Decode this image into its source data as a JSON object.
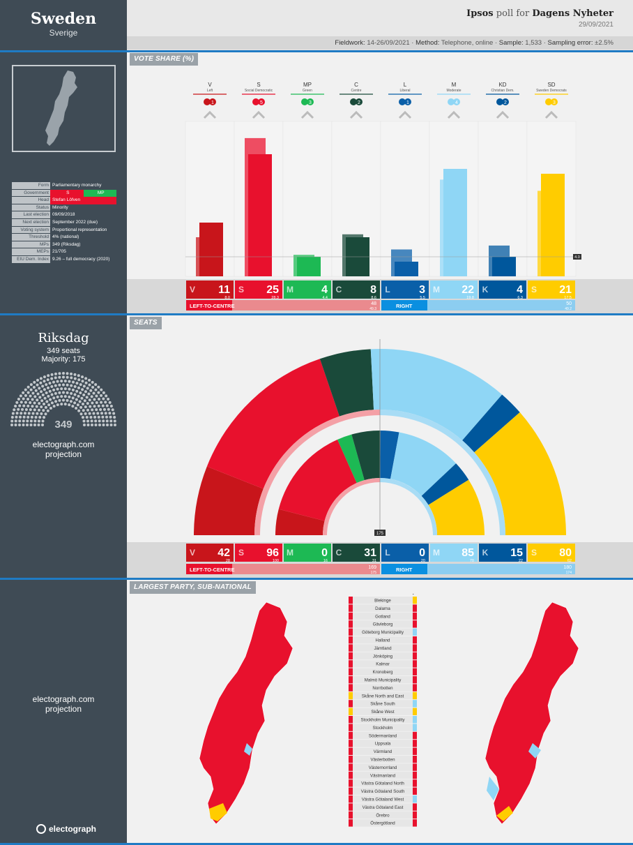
{
  "country": {
    "name": "Sweden",
    "native": "Sverige"
  },
  "poll": {
    "pollster": "Ipsos",
    "poll_for": "poll for",
    "client": "Dagens Nyheter",
    "date": "29/09/2021",
    "meta": [
      {
        "k": "Fieldwork:",
        "v": "14-26/09/2021"
      },
      {
        "k": "Method:",
        "v": "Telephone, online"
      },
      {
        "k": "Sample:",
        "v": "1,533"
      },
      {
        "k": "Sampling error:",
        "v": "±2.5%"
      }
    ]
  },
  "facts": [
    {
      "k": "Form",
      "v": "Parliamentary monarchy"
    },
    {
      "k": "Government",
      "v1": "S",
      "v2": "MP"
    },
    {
      "k": "Head",
      "v": "Stefan Löfven"
    },
    {
      "k": "Status",
      "v": "Minority"
    },
    {
      "k": "Last election",
      "v": "09/09/2018"
    },
    {
      "k": "Next election",
      "v": "September 2022 (due)"
    },
    {
      "k": "Voting system",
      "v": "Proportional representation"
    },
    {
      "k": "Threshold",
      "v": "4% (national)"
    },
    {
      "k": "MPs",
      "v": "349 (Riksdag)"
    },
    {
      "k": "MEPs",
      "v": "21/705"
    },
    {
      "k": "EIU Dem. Index",
      "v": "9.26 – full democracy (2020)"
    }
  ],
  "sections": {
    "vote": "VOTE SHARE (%)",
    "seats": "SEATS",
    "largest": "LARGEST PARTY, SUB-NATIONAL"
  },
  "riksdag": {
    "title": "Riksdag",
    "seats_text": "349 seats",
    "majority_text": "Majority: 175",
    "total": "349",
    "credit": "electograph.com",
    "credit2": "projection"
  },
  "brand": "electograph",
  "colors": {
    "V": "#c8151b",
    "S": "#e8112d",
    "MP": "#1db954",
    "C": "#1a4a3a",
    "L": "#0a5fa8",
    "M": "#8fd6f5",
    "KD": "#00579c",
    "SD": "#ffcc00"
  },
  "chart_data": [
    {
      "type": "bar",
      "title": "VOTE SHARE (%)",
      "categories": [
        "V",
        "S",
        "MP",
        "C",
        "L",
        "M",
        "KD",
        "SD"
      ],
      "party_names": [
        "Left",
        "Social Democratic",
        "Green",
        "Centre",
        "Liberal",
        "Moderate",
        "Christian Dem.",
        "Sweden Democrats"
      ],
      "trend_badges": [
        "1",
        "5",
        "3",
        "2",
        "1",
        "4",
        "2",
        "3"
      ],
      "series": [
        {
          "name": "previous",
          "values": [
            8.0,
            28.3,
            4.4,
            8.6,
            5.5,
            19.8,
            6.3,
            17.5
          ]
        },
        {
          "name": "poll",
          "values": [
            11,
            25,
            4,
            8,
            3,
            22,
            4,
            21
          ]
        }
      ],
      "threshold_label": "4.0",
      "blocs": [
        {
          "name": "LEFT-TO-CENTRE",
          "value": "48",
          "prev": "49.3"
        },
        {
          "name": "RIGHT",
          "value": "50",
          "prev": "49.2"
        }
      ],
      "ylim": [
        0,
        30
      ]
    },
    {
      "type": "pie",
      "title": "SEATS",
      "categories": [
        "V",
        "S",
        "MP",
        "C",
        "L",
        "M",
        "KD",
        "SD"
      ],
      "series": [
        {
          "name": "projection",
          "values": [
            42,
            96,
            0,
            31,
            0,
            85,
            15,
            80
          ]
        },
        {
          "name": "previous",
          "values": [
            28,
            100,
            16,
            31,
            20,
            70,
            22,
            62
          ]
        }
      ],
      "majority_label": "175",
      "blocs": [
        {
          "name": "LEFT-TO-CENTRE",
          "value": "169",
          "prev": "175"
        },
        {
          "name": "RIGHT",
          "value": "180",
          "prev": "174"
        }
      ]
    }
  ],
  "regions": [
    "Blekinge",
    "Dalarna",
    "Gotland",
    "Gävleborg",
    "Göteborg Municipality",
    "Halland",
    "Jämtland",
    "Jönköping",
    "Kalmar",
    "Kronoberg",
    "Malmö Municipality",
    "Norrbotten",
    "Skåne North and East",
    "Skåne South",
    "Skåne West",
    "Stockholm Municipality",
    "Stockholm",
    "Södermanland",
    "Uppsala",
    "Värmland",
    "Västerbotten",
    "Västernorrland",
    "Västmanland",
    "Västra Götaland North",
    "Västra Götaland South",
    "Västra Götaland West",
    "Västra Götaland East",
    "Örebro",
    "Östergötland"
  ],
  "region_prev": [
    "S",
    "S",
    "S",
    "S",
    "S",
    "S",
    "S",
    "S",
    "S",
    "S",
    "S",
    "S",
    "SD",
    "S",
    "SD",
    "S",
    "S",
    "S",
    "S",
    "S",
    "S",
    "S",
    "S",
    "S",
    "S",
    "S",
    "S",
    "S",
    "S"
  ],
  "region_now": [
    "SD",
    "S",
    "S",
    "S",
    "M",
    "S",
    "S",
    "S",
    "S",
    "S",
    "S",
    "S",
    "SD",
    "M",
    "SD",
    "M",
    "M",
    "S",
    "S",
    "S",
    "S",
    "S",
    "S",
    "S",
    "S",
    "M",
    "S",
    "S",
    "S"
  ]
}
